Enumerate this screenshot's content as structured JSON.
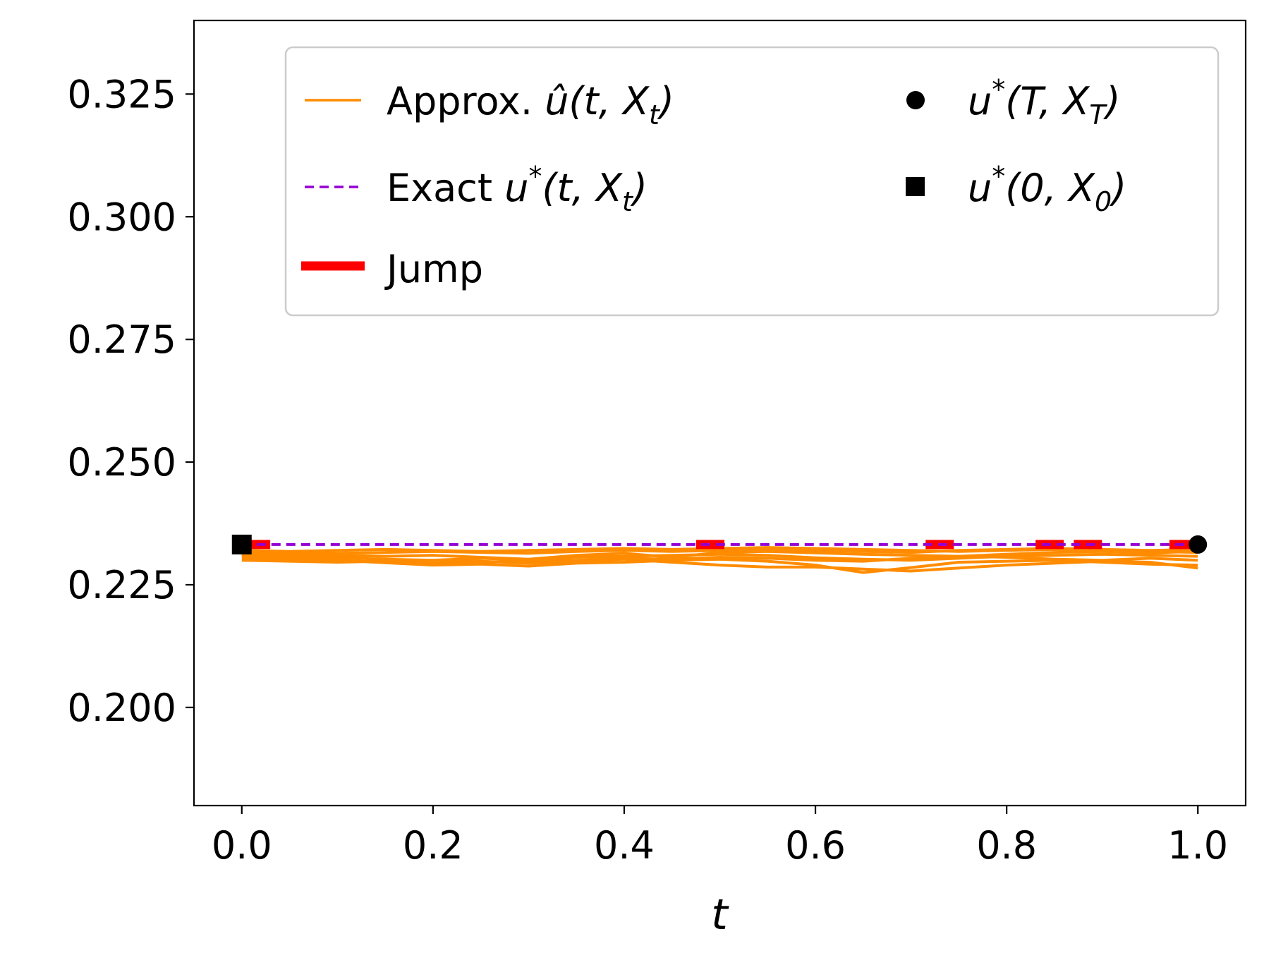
{
  "chart_data": {
    "type": "line",
    "xlabel": "t",
    "ylabel": "",
    "xlim": [
      -0.05,
      1.05
    ],
    "ylim": [
      0.18,
      0.34
    ],
    "xticks": [
      0.0,
      0.2,
      0.4,
      0.6,
      0.8,
      1.0
    ],
    "xtick_labels": [
      "0.0",
      "0.2",
      "0.4",
      "0.6",
      "0.8",
      "1.0"
    ],
    "yticks": [
      0.2,
      0.225,
      0.25,
      0.275,
      0.3,
      0.325
    ],
    "ytick_labels": [
      "0.200",
      "0.225",
      "0.250",
      "0.275",
      "0.300",
      "0.325"
    ],
    "grid": false,
    "legend_position": "top-right",
    "legend": [
      {
        "kind": "line",
        "color": "#ff8c00",
        "text_pre": "Approx. ",
        "math": "û(t, X",
        "sub": "t",
        "close": ")"
      },
      {
        "kind": "point",
        "color": "#000000",
        "math": "u",
        "sup": "*",
        "paren": "(T, X",
        "sub": "T",
        "close": ")"
      },
      {
        "kind": "dashed",
        "color": "#9400d3",
        "text_pre": "Exact ",
        "math": "u",
        "sup": "*",
        "paren": "(t, X",
        "sub": "t",
        "close": ")"
      },
      {
        "kind": "square",
        "color": "#000000",
        "math": "u",
        "sup": "*",
        "paren": "(0, X",
        "sub": "0",
        "close": ")"
      },
      {
        "kind": "thick",
        "color": "#ff0000",
        "text_pre": "Jump"
      }
    ],
    "exact_value": 0.2332,
    "exact_color": "#9400d3",
    "approx_color": "#ff8c00",
    "jump_color": "#ff0000",
    "approx_x": [
      0.0,
      0.05,
      0.1,
      0.15,
      0.2,
      0.25,
      0.3,
      0.35,
      0.4,
      0.45,
      0.5,
      0.55,
      0.6,
      0.65,
      0.7,
      0.75,
      0.8,
      0.85,
      0.9,
      0.95,
      1.0
    ],
    "series": [
      {
        "values": [
          0.231,
          0.2305,
          0.23,
          0.2295,
          0.229,
          0.2292,
          0.2288,
          0.2294,
          0.2296,
          0.23,
          0.2302,
          0.2298,
          0.229,
          0.2275,
          0.2285,
          0.2296,
          0.2298,
          0.23,
          0.2296,
          0.2292,
          0.229
        ]
      },
      {
        "values": [
          0.2312,
          0.2308,
          0.2305,
          0.2302,
          0.23,
          0.2304,
          0.23,
          0.2306,
          0.2308,
          0.231,
          0.2312,
          0.231,
          0.2305,
          0.2302,
          0.23,
          0.2304,
          0.2308,
          0.231,
          0.2312,
          0.231,
          0.2308
        ]
      },
      {
        "values": [
          0.2315,
          0.2312,
          0.231,
          0.2308,
          0.231,
          0.2306,
          0.2302,
          0.231,
          0.2314,
          0.2306,
          0.2316,
          0.2318,
          0.2315,
          0.2312,
          0.231,
          0.2308,
          0.2312,
          0.2316,
          0.2318,
          0.2315,
          0.2318
        ]
      },
      {
        "values": [
          0.23,
          0.2298,
          0.2296,
          0.2298,
          0.23,
          0.2298,
          0.2294,
          0.2298,
          0.2302,
          0.2296,
          0.229,
          0.2286,
          0.2286,
          0.2282,
          0.2278,
          0.2284,
          0.229,
          0.2294,
          0.2298,
          0.2296,
          0.2284
        ]
      },
      {
        "values": [
          0.2318,
          0.2316,
          0.2314,
          0.2316,
          0.2318,
          0.2316,
          0.2314,
          0.2318,
          0.232,
          0.2318,
          0.232,
          0.2322,
          0.232,
          0.2318,
          0.2316,
          0.232,
          0.2322,
          0.2324,
          0.2322,
          0.232,
          0.2322
        ]
      },
      {
        "values": [
          0.2305,
          0.2302,
          0.23,
          0.2296,
          0.2294,
          0.2296,
          0.2298,
          0.23,
          0.2304,
          0.2302,
          0.2306,
          0.2304,
          0.23,
          0.2298,
          0.2304,
          0.2308,
          0.2306,
          0.2302,
          0.23,
          0.2304,
          0.23
        ]
      },
      {
        "values": [
          0.232,
          0.2318,
          0.232,
          0.2322,
          0.232,
          0.2318,
          0.232,
          0.2322,
          0.2324,
          0.2322,
          0.2324,
          0.2326,
          0.2324,
          0.2322,
          0.232,
          0.2318,
          0.232,
          0.2322,
          0.232,
          0.2318,
          0.2316
        ]
      }
    ],
    "jumps": [
      0.015,
      0.49,
      0.73,
      0.845,
      0.885,
      0.985
    ],
    "start_point": {
      "x": 0.0,
      "y": 0.2332
    },
    "end_point": {
      "x": 1.0,
      "y": 0.2332
    }
  }
}
